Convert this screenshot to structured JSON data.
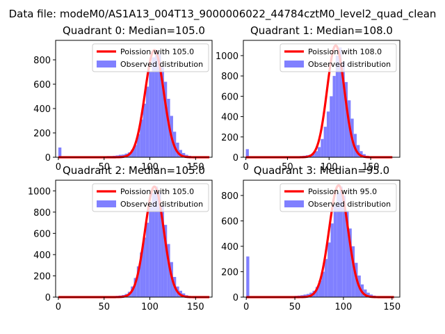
{
  "figure": {
    "suptitle": "Data file: modeM0/AS1A13_004T13_9000006022_44784cztM0_level2_quad_clean"
  },
  "colors": {
    "poisson_line": "#ff0000",
    "histogram": "#8080ff",
    "axes": "#000000"
  },
  "chart_data": [
    {
      "type": "bar",
      "title": "Quadrant 0: Median=105.0",
      "xlim": [
        -3,
        168
      ],
      "ylim": [
        0,
        960
      ],
      "xticks": [
        0,
        50,
        100,
        150
      ],
      "yticks": [
        0,
        200,
        400,
        600,
        800
      ],
      "legend": {
        "placement": "top-right",
        "entries": [
          "Poission with 105.0",
          "Observed distribution"
        ]
      },
      "median": 105,
      "bin_width": 3.3,
      "histogram": [
        [
          0,
          80
        ],
        [
          3.3,
          8
        ],
        [
          6.6,
          8
        ],
        [
          9.9,
          8
        ],
        [
          13.2,
          8
        ],
        [
          16.5,
          8
        ],
        [
          19.8,
          8
        ],
        [
          23.1,
          8
        ],
        [
          26.4,
          8
        ],
        [
          29.7,
          8
        ],
        [
          33,
          8
        ],
        [
          36.3,
          8
        ],
        [
          39.6,
          8
        ],
        [
          42.9,
          8
        ],
        [
          46.2,
          8
        ],
        [
          49.5,
          8
        ],
        [
          52.8,
          10
        ],
        [
          56.1,
          10
        ],
        [
          59.4,
          12
        ],
        [
          62.7,
          15
        ],
        [
          66,
          20
        ],
        [
          69.3,
          22
        ],
        [
          72.6,
          30
        ],
        [
          75.9,
          40
        ],
        [
          79.2,
          60
        ],
        [
          82.5,
          100
        ],
        [
          85.8,
          190
        ],
        [
          89.1,
          310
        ],
        [
          92.4,
          440
        ],
        [
          95.7,
          580
        ],
        [
          99,
          700
        ],
        [
          102.3,
          820
        ],
        [
          105.6,
          880
        ],
        [
          108.9,
          850
        ],
        [
          112.2,
          740
        ],
        [
          115.5,
          620
        ],
        [
          118.8,
          480
        ],
        [
          122.1,
          340
        ],
        [
          125.4,
          210
        ],
        [
          128.7,
          120
        ],
        [
          132,
          60
        ],
        [
          135.3,
          35
        ],
        [
          138.6,
          20
        ],
        [
          141.9,
          12
        ],
        [
          145.2,
          8
        ],
        [
          148.5,
          8
        ],
        [
          151.8,
          8
        ],
        [
          155.1,
          5
        ],
        [
          158.4,
          5
        ],
        [
          161.7,
          5
        ]
      ],
      "poisson_peak": 880,
      "x_range": [
        0,
        165
      ]
    },
    {
      "type": "bar",
      "title": "Quadrant 1: Median=108.0",
      "xlim": [
        -3,
        185
      ],
      "ylim": [
        0,
        1150
      ],
      "xticks": [
        0,
        50,
        100,
        150
      ],
      "yticks": [
        0,
        200,
        400,
        600,
        800,
        1000
      ],
      "legend": {
        "placement": "top-right",
        "entries": [
          "Poission with 108.0",
          "Observed distribution"
        ]
      },
      "median": 108,
      "bin_width": 3.6,
      "histogram": [
        [
          0,
          80
        ],
        [
          3.6,
          8
        ],
        [
          7.2,
          8
        ],
        [
          10.8,
          8
        ],
        [
          14.4,
          8
        ],
        [
          18,
          8
        ],
        [
          21.6,
          8
        ],
        [
          25.2,
          8
        ],
        [
          28.8,
          8
        ],
        [
          32.4,
          8
        ],
        [
          36,
          8
        ],
        [
          39.6,
          8
        ],
        [
          43.2,
          8
        ],
        [
          46.8,
          8
        ],
        [
          50.4,
          8
        ],
        [
          54,
          8
        ],
        [
          57.6,
          8
        ],
        [
          61.2,
          10
        ],
        [
          64.8,
          12
        ],
        [
          68.4,
          15
        ],
        [
          72,
          20
        ],
        [
          75.6,
          25
        ],
        [
          79.2,
          40
        ],
        [
          82.8,
          60
        ],
        [
          86.4,
          100
        ],
        [
          90,
          180
        ],
        [
          93.6,
          300
        ],
        [
          97.2,
          450
        ],
        [
          100.8,
          600
        ],
        [
          104.4,
          800
        ],
        [
          108,
          1000
        ],
        [
          111.6,
          1080
        ],
        [
          115.2,
          940
        ],
        [
          118.8,
          740
        ],
        [
          122.4,
          560
        ],
        [
          126,
          380
        ],
        [
          129.6,
          230
        ],
        [
          133.2,
          120
        ],
        [
          136.8,
          60
        ],
        [
          140.4,
          30
        ],
        [
          144,
          15
        ],
        [
          147.6,
          10
        ],
        [
          151.2,
          8
        ],
        [
          154.8,
          5
        ],
        [
          158.4,
          5
        ],
        [
          162,
          5
        ],
        [
          165.6,
          5
        ],
        [
          169.2,
          5
        ],
        [
          172.8,
          5
        ]
      ],
      "poisson_peak": 1100,
      "x_range": [
        0,
        176
      ]
    },
    {
      "type": "bar",
      "title": "Quadrant 2: Median=105.0",
      "xlim": [
        -3,
        168
      ],
      "ylim": [
        0,
        1100
      ],
      "xticks": [
        0,
        50,
        100,
        150
      ],
      "yticks": [
        0,
        200,
        400,
        600,
        800,
        1000
      ],
      "legend": {
        "placement": "top-right",
        "entries": [
          "Poission with 105.0",
          "Observed distribution"
        ]
      },
      "median": 105,
      "bin_width": 3.3,
      "histogram": [
        [
          0,
          8
        ],
        [
          3.3,
          8
        ],
        [
          6.6,
          8
        ],
        [
          9.9,
          8
        ],
        [
          13.2,
          8
        ],
        [
          16.5,
          8
        ],
        [
          19.8,
          8
        ],
        [
          23.1,
          8
        ],
        [
          26.4,
          8
        ],
        [
          29.7,
          8
        ],
        [
          33,
          8
        ],
        [
          36.3,
          8
        ],
        [
          39.6,
          8
        ],
        [
          42.9,
          8
        ],
        [
          46.2,
          8
        ],
        [
          49.5,
          8
        ],
        [
          52.8,
          8
        ],
        [
          56.1,
          8
        ],
        [
          59.4,
          10
        ],
        [
          62.7,
          12
        ],
        [
          66,
          15
        ],
        [
          69.3,
          20
        ],
        [
          72.6,
          30
        ],
        [
          75.9,
          50
        ],
        [
          79.2,
          100
        ],
        [
          82.5,
          180
        ],
        [
          85.8,
          290
        ],
        [
          89.1,
          420
        ],
        [
          92.4,
          560
        ],
        [
          95.7,
          700
        ],
        [
          99,
          850
        ],
        [
          102.3,
          980
        ],
        [
          105.6,
          1040
        ],
        [
          108.9,
          990
        ],
        [
          112.2,
          860
        ],
        [
          115.5,
          680
        ],
        [
          118.8,
          500
        ],
        [
          122.1,
          330
        ],
        [
          125.4,
          190
        ],
        [
          128.7,
          100
        ],
        [
          132,
          60
        ],
        [
          135.3,
          35
        ],
        [
          138.6,
          18
        ],
        [
          141.9,
          10
        ],
        [
          145.2,
          8
        ],
        [
          148.5,
          5
        ],
        [
          151.8,
          5
        ],
        [
          155.1,
          5
        ],
        [
          158.4,
          5
        ],
        [
          161.7,
          5
        ]
      ],
      "poisson_peak": 1040,
      "x_range": [
        0,
        165
      ]
    },
    {
      "type": "bar",
      "title": "Quadrant 3: Median=95.0",
      "xlim": [
        -3,
        158
      ],
      "ylim": [
        0,
        920
      ],
      "xticks": [
        0,
        50,
        100,
        150
      ],
      "yticks": [
        0,
        200,
        400,
        600,
        800
      ],
      "legend": {
        "placement": "top-right",
        "entries": [
          "Poission with 95.0",
          "Observed distribution"
        ]
      },
      "median": 95,
      "bin_width": 3.1,
      "histogram": [
        [
          0,
          320
        ],
        [
          3.1,
          8
        ],
        [
          6.2,
          8
        ],
        [
          9.3,
          8
        ],
        [
          12.4,
          8
        ],
        [
          15.5,
          8
        ],
        [
          18.6,
          8
        ],
        [
          21.7,
          8
        ],
        [
          24.8,
          8
        ],
        [
          27.9,
          8
        ],
        [
          31,
          8
        ],
        [
          34.1,
          8
        ],
        [
          37.2,
          8
        ],
        [
          40.3,
          8
        ],
        [
          43.4,
          8
        ],
        [
          46.5,
          8
        ],
        [
          49.6,
          10
        ],
        [
          52.7,
          12
        ],
        [
          55.8,
          15
        ],
        [
          58.9,
          20
        ],
        [
          62,
          25
        ],
        [
          65.1,
          35
        ],
        [
          68.2,
          50
        ],
        [
          71.3,
          80
        ],
        [
          74.4,
          130
        ],
        [
          77.5,
          200
        ],
        [
          80.6,
          300
        ],
        [
          83.7,
          430
        ],
        [
          86.8,
          580
        ],
        [
          89.9,
          720
        ],
        [
          93,
          820
        ],
        [
          96.1,
          870
        ],
        [
          99.2,
          800
        ],
        [
          102.3,
          680
        ],
        [
          105.4,
          540
        ],
        [
          108.5,
          400
        ],
        [
          111.6,
          270
        ],
        [
          114.7,
          170
        ],
        [
          117.8,
          100
        ],
        [
          120.9,
          60
        ],
        [
          124,
          35
        ],
        [
          127.1,
          20
        ],
        [
          130.2,
          12
        ],
        [
          133.3,
          8
        ],
        [
          136.4,
          6
        ],
        [
          139.5,
          5
        ],
        [
          142.6,
          5
        ],
        [
          145.7,
          5
        ],
        [
          148.8,
          5
        ]
      ],
      "poisson_peak": 880,
      "x_range": [
        0,
        152
      ]
    }
  ]
}
